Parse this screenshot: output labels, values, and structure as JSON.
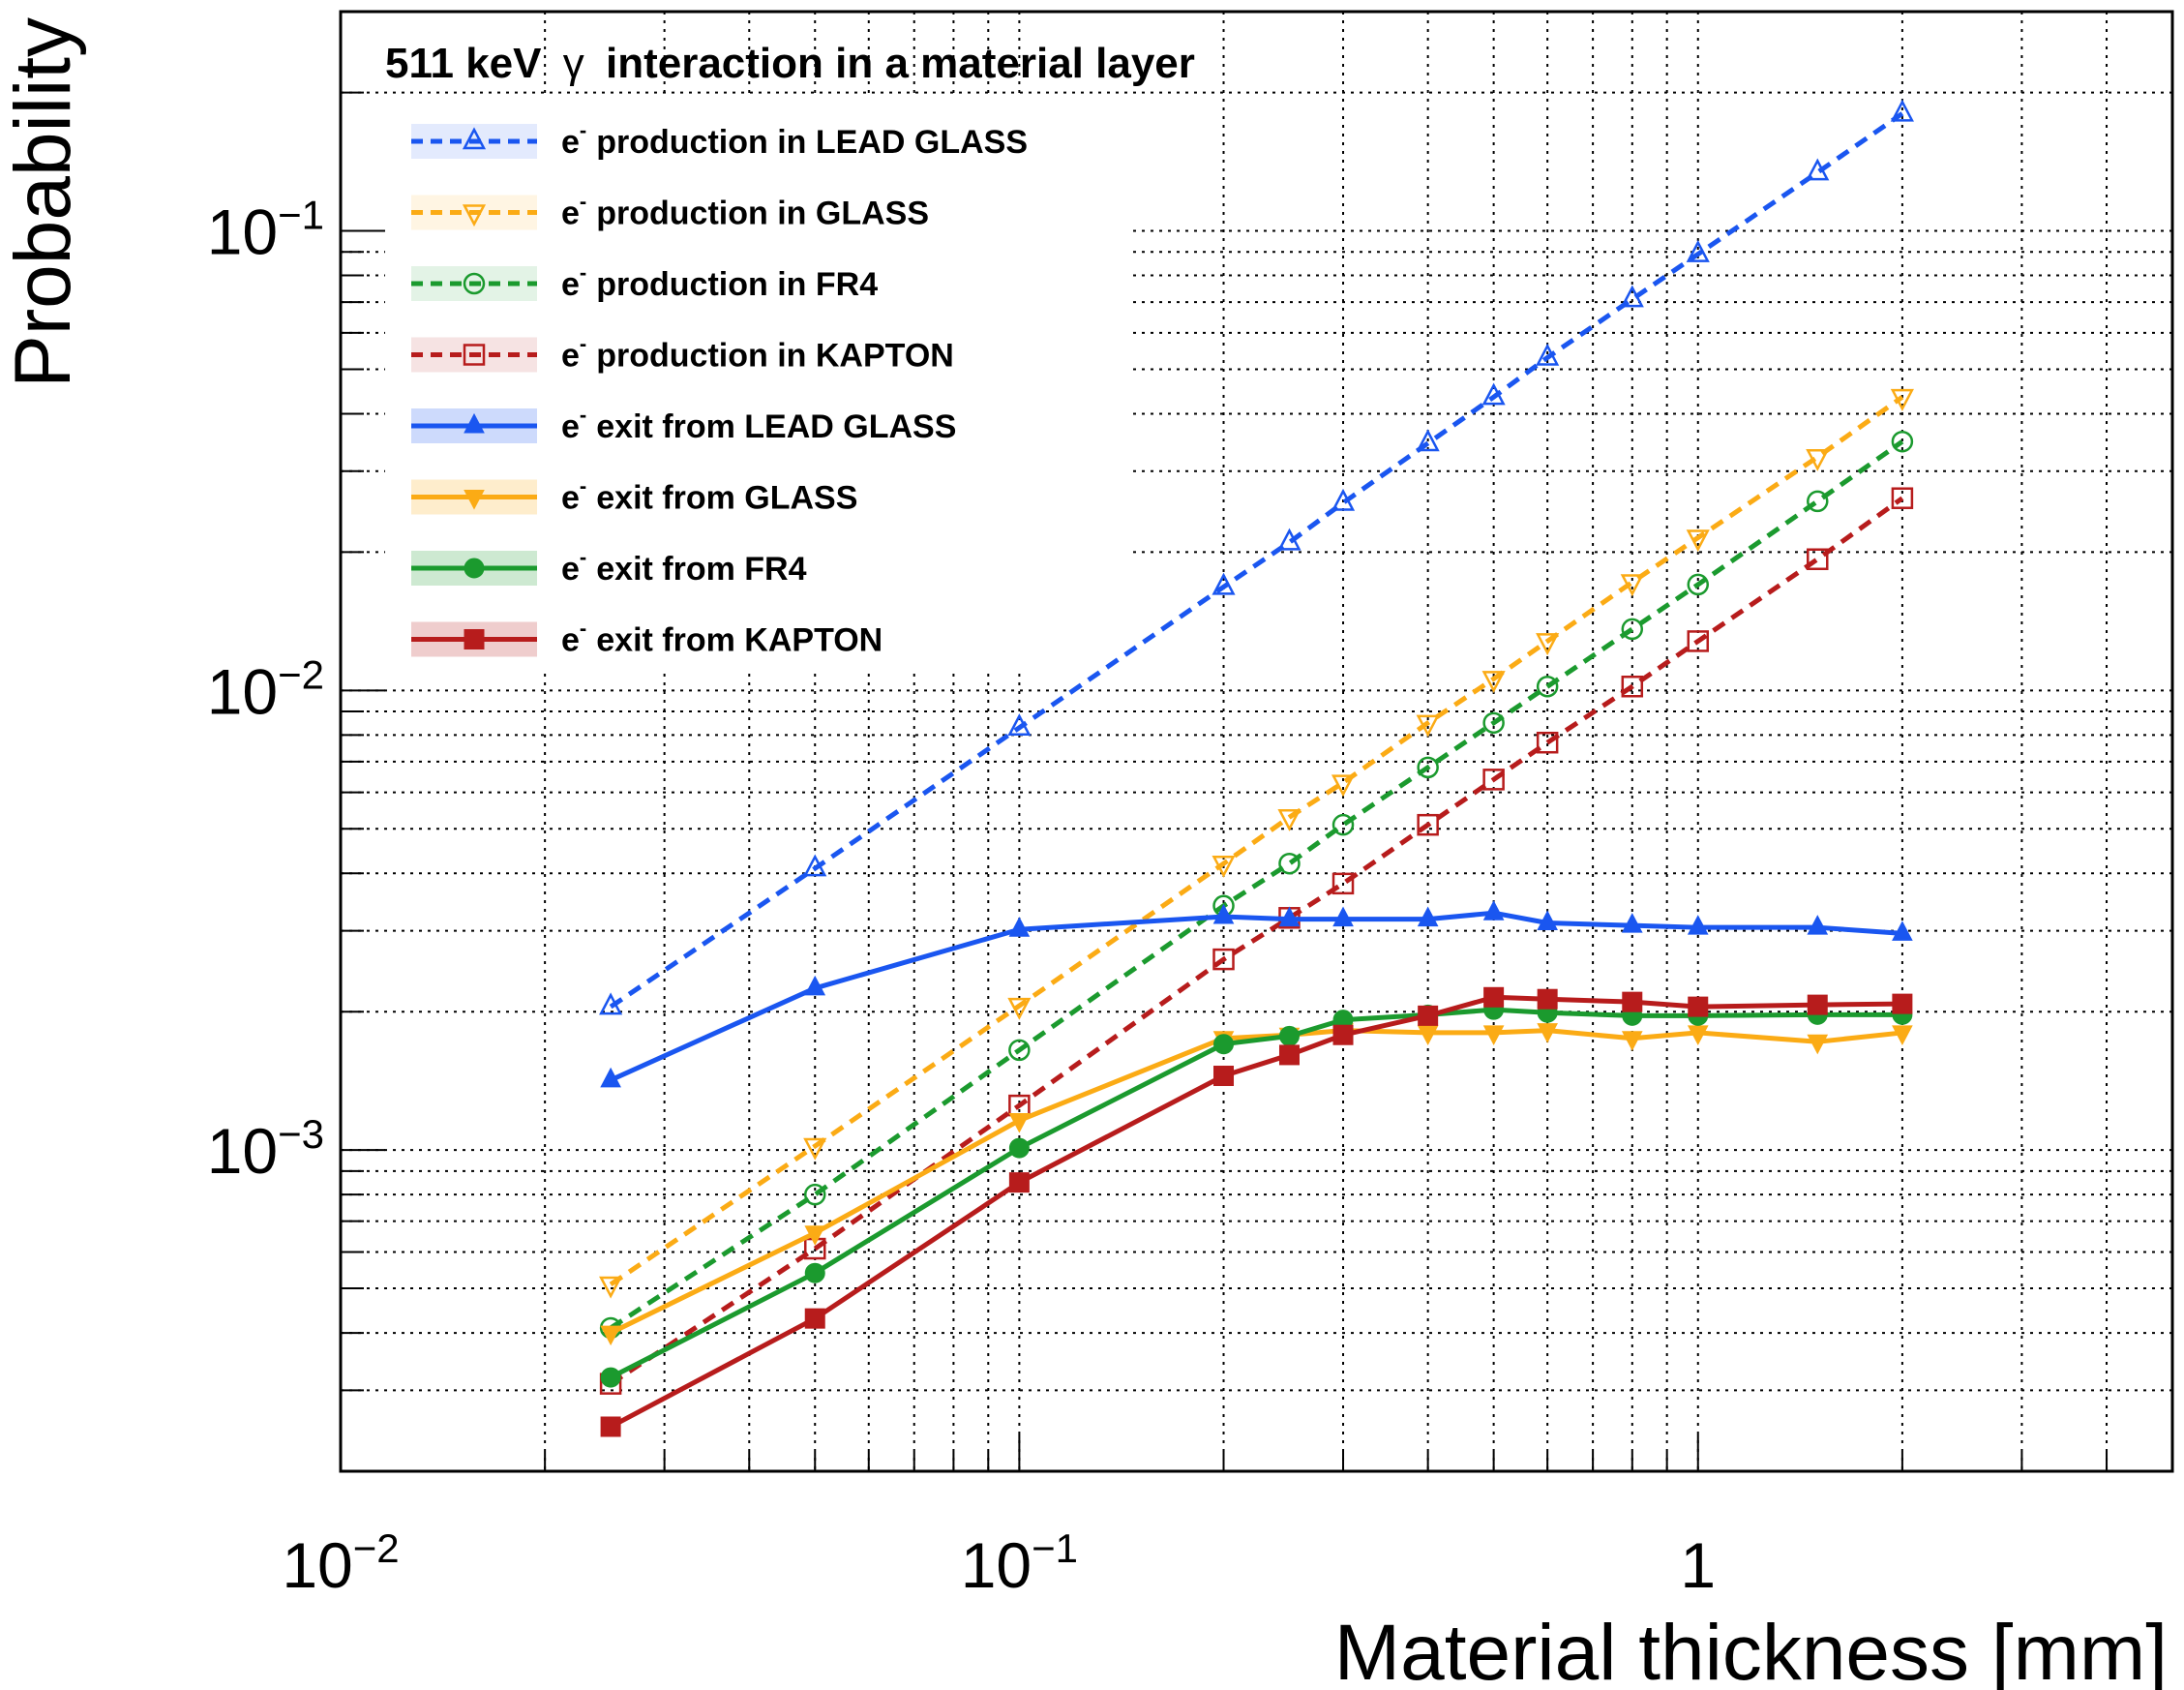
{
  "chart_data": {
    "type": "line",
    "title_prefix": "511 keV",
    "title_symbol": "γ",
    "title_suffix": "interaction in a material layer",
    "xlabel": "Material thickness [mm]",
    "ylabel": "Probability",
    "x_scale": "log",
    "y_scale": "log",
    "xlim": [
      0.01,
      5
    ],
    "ylim": [
      0.0002,
      0.3
    ],
    "grid": true,
    "legend_placement": "top-left",
    "x_ticks": [
      {
        "value": 0.01,
        "base": "10",
        "exp": "−2"
      },
      {
        "value": 0.1,
        "base": "10",
        "exp": "−1"
      },
      {
        "value": 1,
        "base": "1",
        "exp": ""
      }
    ],
    "y_ticks": [
      {
        "value": 0.001,
        "base": "10",
        "exp": "−3"
      },
      {
        "value": 0.01,
        "base": "10",
        "exp": "−2"
      },
      {
        "value": 0.1,
        "base": "10",
        "exp": "−1"
      }
    ],
    "x": [
      0.025,
      0.05,
      0.1,
      0.2,
      0.25,
      0.3,
      0.4,
      0.5,
      0.6,
      0.8,
      1.0,
      1.5,
      2.0
    ],
    "series": [
      {
        "name": "production in LEAD GLASS",
        "prefix": "e",
        "sup": "-",
        "color": "#1a56f0",
        "style": "dashed",
        "marker": "triangle-up-open",
        "values": [
          0.00205,
          0.0041,
          0.0083,
          0.0168,
          0.021,
          0.0256,
          0.0345,
          0.0435,
          0.053,
          0.071,
          0.089,
          0.134,
          0.18
        ]
      },
      {
        "name": "production in GLASS",
        "prefix": "e",
        "sup": "-",
        "color": "#fbab15",
        "style": "dashed",
        "marker": "triangle-down-open",
        "values": [
          0.00051,
          0.00102,
          0.00206,
          0.0042,
          0.0053,
          0.0063,
          0.0085,
          0.0106,
          0.0128,
          0.0172,
          0.0215,
          0.0322,
          0.0435
        ]
      },
      {
        "name": "production in FR4",
        "prefix": "e",
        "sup": "-",
        "color": "#1b9a2e",
        "style": "dashed",
        "marker": "circle-open",
        "values": [
          0.00041,
          0.0008,
          0.00165,
          0.0034,
          0.0042,
          0.0051,
          0.0068,
          0.0085,
          0.0102,
          0.0136,
          0.017,
          0.0258,
          0.0348
        ]
      },
      {
        "name": "production in KAPTON",
        "prefix": "e",
        "sup": "-",
        "color": "#b71c1c",
        "style": "dashed",
        "marker": "square-open",
        "values": [
          0.00031,
          0.00061,
          0.00125,
          0.0026,
          0.0032,
          0.0038,
          0.0051,
          0.0064,
          0.0077,
          0.0102,
          0.0128,
          0.0193,
          0.0262
        ]
      },
      {
        "name": "exit from LEAD GLASS",
        "prefix": "e",
        "sup": "-",
        "color": "#1a56f0",
        "style": "solid",
        "marker": "triangle-up",
        "values": [
          0.00142,
          0.00225,
          0.00302,
          0.00322,
          0.00318,
          0.00318,
          0.00318,
          0.00328,
          0.00312,
          0.00308,
          0.00305,
          0.00305,
          0.00296
        ]
      },
      {
        "name": "exit from GLASS",
        "prefix": "e",
        "sup": "-",
        "color": "#fbab15",
        "style": "solid",
        "marker": "triangle-down",
        "values": [
          0.0004,
          0.00066,
          0.00116,
          0.00175,
          0.00178,
          0.00182,
          0.0018,
          0.0018,
          0.00182,
          0.00175,
          0.0018,
          0.00172,
          0.0018
        ]
      },
      {
        "name": "exit from FR4",
        "prefix": "e",
        "sup": "-",
        "color": "#1b9a2e",
        "style": "solid",
        "marker": "circle",
        "values": [
          0.00032,
          0.00054,
          0.00101,
          0.0017,
          0.00177,
          0.00192,
          0.00197,
          0.00202,
          0.00199,
          0.00196,
          0.00196,
          0.00197,
          0.00197
        ]
      },
      {
        "name": "exit from KAPTON",
        "prefix": "e",
        "sup": "-",
        "color": "#b71c1c",
        "style": "solid",
        "marker": "square",
        "values": [
          0.00025,
          0.00043,
          0.00085,
          0.00145,
          0.00161,
          0.00178,
          0.00196,
          0.00215,
          0.00213,
          0.0021,
          0.00205,
          0.00207,
          0.00208
        ]
      }
    ]
  }
}
